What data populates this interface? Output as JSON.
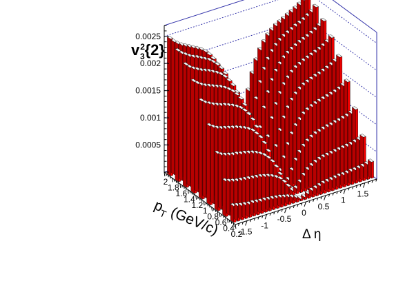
{
  "chart_data": {
    "type": "bar3d",
    "title": "",
    "zlabel": {
      "main": "v",
      "sup": "2",
      "sub": "3",
      "suffix": "{2}"
    },
    "xlabel": "Δ η",
    "ylabel": {
      "main": "p",
      "sub": "T",
      "suffix": " (GeV/c)"
    },
    "xlim": [
      -1.8,
      1.8
    ],
    "ylim": [
      0.2,
      2.0
    ],
    "zlim": [
      0,
      0.0027
    ],
    "x_ticks": [
      "-1.5",
      "-1",
      "-0.5",
      "0",
      "0.5",
      "1",
      "1.5"
    ],
    "x_tick_values": [
      -1.5,
      -1,
      -0.5,
      0,
      0.5,
      1,
      1.5
    ],
    "y_ticks": [
      "0.2",
      "0.4",
      "0.6",
      "0.8",
      "1",
      "1.2",
      "1.4",
      "1.6",
      "1.8",
      "2"
    ],
    "y_tick_values": [
      0.2,
      0.4,
      0.6,
      0.8,
      1.0,
      1.2,
      1.4,
      1.6,
      1.8,
      2.0
    ],
    "z_ticks": [
      "0.0005",
      "0.001",
      "0.0015",
      "0.002",
      "0.0025"
    ],
    "z_tick_values": [
      0.0005,
      0.001,
      0.0015,
      0.002,
      0.0025
    ],
    "x_bins": [
      -1.75,
      -1.65,
      -1.55,
      -1.45,
      -1.35,
      -1.25,
      -1.15,
      -1.05,
      -0.95,
      -0.85,
      -0.75,
      -0.65,
      -0.55,
      -0.45,
      -0.35,
      -0.25,
      -0.15,
      -0.05,
      0.05,
      0.15,
      0.25,
      0.35,
      0.45,
      0.55,
      0.65,
      0.75,
      0.85,
      0.95,
      1.05,
      1.15,
      1.25,
      1.35,
      1.45,
      1.55,
      1.65,
      1.75
    ],
    "y_bins": [
      0.3,
      0.5,
      0.7,
      0.9,
      1.1,
      1.3,
      1.5,
      1.7,
      1.9
    ],
    "values": [
      [
        0.0003,
        0.00028,
        0.00026,
        0.00025,
        0.00024,
        0.00024,
        0.00023,
        0.00022,
        0.00022,
        0.00021,
        0.0002,
        0.00019,
        0.00018,
        0.00016,
        0.00014,
        0.00011,
        8e-05,
        4e-05,
        5e-05,
        8e-05,
        0.00012,
        0.00014,
        0.00016,
        0.00018,
        0.00019,
        0.0002,
        0.00021,
        0.00022,
        0.00022,
        0.00023,
        0.00024,
        0.00024,
        0.00025,
        0.00026,
        0.00028,
        0.0003
      ],
      [
        0.00065,
        0.00062,
        0.0006,
        0.00058,
        0.00057,
        0.00056,
        0.00055,
        0.00054,
        0.00053,
        0.00052,
        0.0005,
        0.00048,
        0.00045,
        0.00041,
        0.00036,
        0.00028,
        0.00018,
        8e-05,
        0.0001,
        0.00019,
        0.00029,
        0.00037,
        0.00042,
        0.00046,
        0.00049,
        0.00051,
        0.00052,
        0.00053,
        0.00054,
        0.00055,
        0.00056,
        0.00057,
        0.00058,
        0.0006,
        0.00062,
        0.00065
      ],
      [
        0.00105,
        0.001,
        0.00097,
        0.00095,
        0.00093,
        0.00092,
        0.0009,
        0.00089,
        0.00087,
        0.00085,
        0.00082,
        0.00078,
        0.00073,
        0.00066,
        0.00057,
        0.00045,
        0.00029,
        0.00012,
        0.00015,
        0.0003,
        0.00046,
        0.00058,
        0.00067,
        0.00074,
        0.00079,
        0.00083,
        0.00085,
        0.00087,
        0.00089,
        0.0009,
        0.00092,
        0.00093,
        0.00095,
        0.00097,
        0.001,
        0.00105
      ],
      [
        0.00145,
        0.0014,
        0.00136,
        0.00133,
        0.00131,
        0.00129,
        0.00127,
        0.00125,
        0.00122,
        0.00119,
        0.00115,
        0.0011,
        0.00102,
        0.00093,
        0.0008,
        0.00063,
        0.00041,
        0.00017,
        0.00021,
        0.00042,
        0.00064,
        0.00081,
        0.00094,
        0.00103,
        0.00111,
        0.00116,
        0.0012,
        0.00123,
        0.00125,
        0.00127,
        0.00129,
        0.00131,
        0.00133,
        0.00136,
        0.0014,
        0.00145
      ],
      [
        0.0018,
        0.00174,
        0.0017,
        0.00166,
        0.00163,
        0.0016,
        0.00158,
        0.00155,
        0.00152,
        0.00148,
        0.00143,
        0.00136,
        0.00127,
        0.00115,
        0.00099,
        0.00078,
        0.00051,
        0.00022,
        0.00026,
        0.00052,
        0.00079,
        0.001,
        0.00116,
        0.00128,
        0.00137,
        0.00144,
        0.00149,
        0.00152,
        0.00155,
        0.00158,
        0.0016,
        0.00163,
        0.00166,
        0.0017,
        0.00174,
        0.0018
      ],
      [
        0.00205,
        0.00199,
        0.00194,
        0.0019,
        0.00187,
        0.00184,
        0.00181,
        0.00178,
        0.00174,
        0.00169,
        0.00163,
        0.00155,
        0.00145,
        0.00131,
        0.00113,
        0.00089,
        0.00058,
        0.00025,
        0.0003,
        0.00059,
        0.0009,
        0.00114,
        0.00132,
        0.00146,
        0.00156,
        0.00164,
        0.0017,
        0.00174,
        0.00178,
        0.00181,
        0.00184,
        0.00187,
        0.0019,
        0.00194,
        0.00199,
        0.00205
      ],
      [
        0.00225,
        0.00218,
        0.00213,
        0.00209,
        0.00205,
        0.00202,
        0.00199,
        0.00195,
        0.00191,
        0.00186,
        0.00179,
        0.0017,
        0.00159,
        0.00144,
        0.00124,
        0.00098,
        0.00064,
        0.00028,
        0.00033,
        0.00065,
        0.00099,
        0.00125,
        0.00145,
        0.0016,
        0.00171,
        0.0018,
        0.00186,
        0.00191,
        0.00195,
        0.00199,
        0.00202,
        0.00205,
        0.00209,
        0.00213,
        0.00218,
        0.00225
      ],
      [
        0.0024,
        0.00233,
        0.00228,
        0.00223,
        0.00219,
        0.00216,
        0.00212,
        0.00208,
        0.00204,
        0.00198,
        0.00191,
        0.00182,
        0.0017,
        0.00154,
        0.00132,
        0.00104,
        0.00068,
        0.0003,
        0.00035,
        0.00069,
        0.00105,
        0.00133,
        0.00155,
        0.00171,
        0.00183,
        0.00192,
        0.00199,
        0.00204,
        0.00208,
        0.00212,
        0.00216,
        0.00219,
        0.00223,
        0.00228,
        0.00233,
        0.0024
      ],
      [
        0.00252,
        0.00244,
        0.00238,
        0.00233,
        0.00229,
        0.00225,
        0.00221,
        0.00217,
        0.00213,
        0.00207,
        0.00199,
        0.00189,
        0.00177,
        0.0016,
        0.00138,
        0.00109,
        0.00071,
        0.00031,
        0.00037,
        0.00072,
        0.0011,
        0.00139,
        0.00161,
        0.00178,
        0.0019,
        0.002,
        0.00207,
        0.00213,
        0.00217,
        0.00221,
        0.00225,
        0.00229,
        0.00233,
        0.00238,
        0.00244,
        0.00252
      ]
    ],
    "grid": true,
    "legend": "none",
    "colors": {
      "bar_front": "#ee0000",
      "bar_side": "#b80000",
      "bar_top": "#f4f4f4",
      "frame": "#3333aa",
      "grid": "#3333aa"
    }
  }
}
